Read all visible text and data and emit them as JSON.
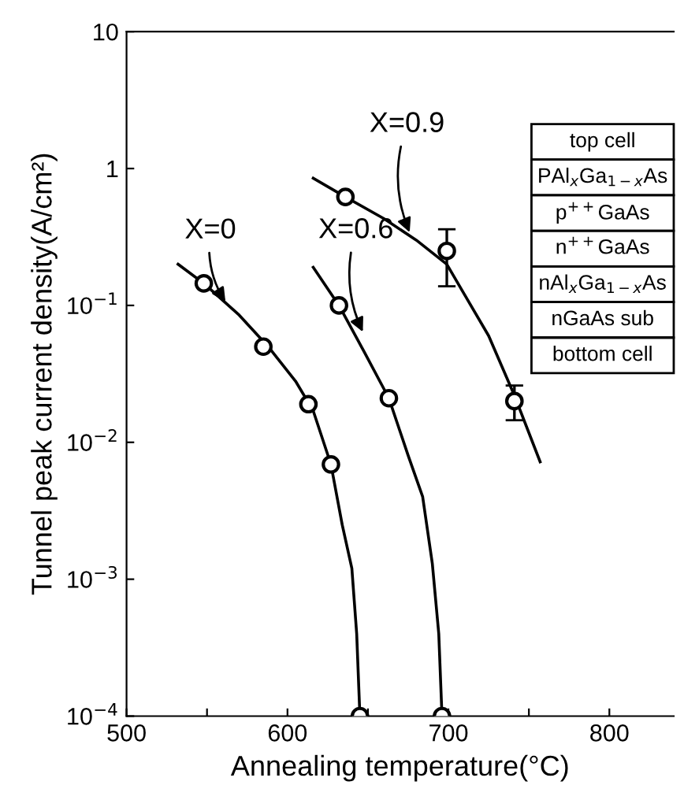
{
  "chart_data": {
    "type": "scatter",
    "xlabel": "Annealing temperature(°C)",
    "ylabel": "Tunnel peak current density(A/cm²)",
    "log": "y",
    "xlim": [
      500,
      840
    ],
    "ylim": [
      0.0001,
      10
    ],
    "xticks": [
      500,
      {
        "value": 550,
        "label": null
      },
      600,
      {
        "value": 650,
        "label": null
      },
      700,
      {
        "value": 750,
        "label": null
      },
      800
    ],
    "yticks": [
      {
        "value": 0.0001,
        "label": "10$^{−4}$"
      },
      {
        "value": 0.001,
        "label": "10$^{−3}$"
      },
      {
        "value": 0.01,
        "label": "10$^{−2}$"
      },
      {
        "value": 0.1,
        "label": "10$^{−1}$"
      },
      1,
      10
    ],
    "grid": false,
    "legend": false,
    "series": [
      {
        "marker": "circle",
        "color": "#000000",
        "x": [
          548,
          585,
          613,
          627,
          645
        ],
        "values": [
          0.145,
          0.05,
          0.019,
          0.0069,
          0.0001
        ]
      },
      {
        "marker": "circle",
        "color": "#000000",
        "x": [
          632,
          663,
          696
        ],
        "values": [
          0.1,
          0.021,
          0.0001
        ]
      },
      {
        "marker": "circle",
        "color": "#000000",
        "x": [
          636,
          699,
          741
        ],
        "values": [
          0.62,
          0.25,
          0.02
        ],
        "errors": [
          null,
          [
            0.138,
            0.36
          ],
          [
            0.0145,
            0.026
          ]
        ]
      },
      {
        "type": "line",
        "marker": "none",
        "color": "#000000",
        "x": [
          532,
          548,
          570,
          588,
          605,
          616,
          627,
          634,
          640,
          643,
          645
        ],
        "values": [
          0.2,
          0.145,
          0.085,
          0.05,
          0.028,
          0.017,
          0.0069,
          0.0025,
          0.0012,
          0.0004,
          0.0001
        ]
      },
      {
        "type": "line",
        "marker": "none",
        "color": "#000000",
        "x": [
          616,
          632,
          648,
          663,
          675,
          684,
          690,
          694,
          696
        ],
        "values": [
          0.19,
          0.1,
          0.045,
          0.021,
          0.008,
          0.004,
          0.0013,
          0.0004,
          0.0001
        ]
      },
      {
        "type": "line",
        "marker": "none",
        "color": "#000000",
        "x": [
          616,
          636,
          660,
          680,
          699,
          710,
          725,
          741,
          757
        ],
        "values": [
          0.85,
          0.62,
          0.43,
          0.3,
          0.2,
          0.12,
          0.06,
          0.022,
          0.0072
        ]
      }
    ],
    "annotations": [
      {
        "text": "X=0",
        "x": 563,
        "y": 0.1
      },
      {
        "text": "X=0.6",
        "x": 648,
        "y": 0.06
      },
      {
        "text": "X=0.9",
        "x": 677,
        "y": 0.32
      },
      "top cell",
      "PAl$_{x}$Ga$_{1−x}$As",
      "p$^{++}$GaAs",
      "n$^{++}$GaAs",
      "nAl$_{x}$Ga$_{1−x}$As",
      "nGaAs sub",
      "bottom cell"
    ]
  }
}
